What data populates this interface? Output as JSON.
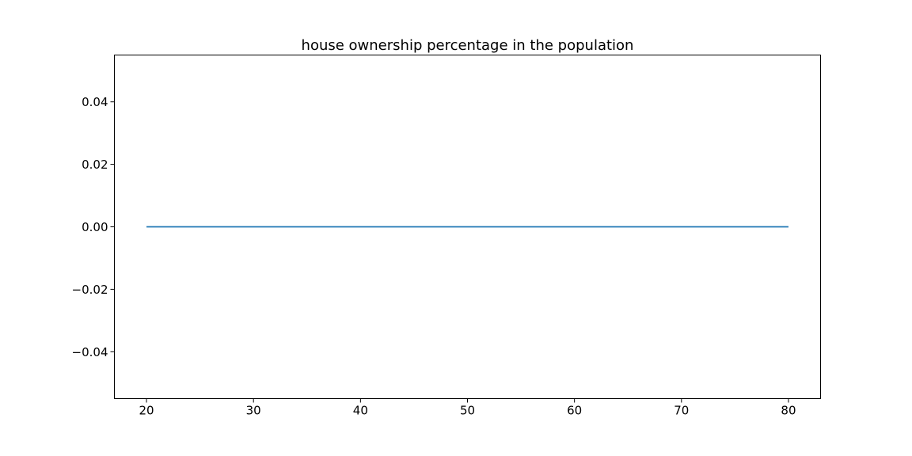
{
  "chart_data": {
    "type": "line",
    "title": "house ownership percentage in the population",
    "xlabel": "",
    "ylabel": "",
    "xlim": [
      17,
      83
    ],
    "ylim": [
      -0.055,
      0.055
    ],
    "x_ticks": [
      20,
      30,
      40,
      50,
      60,
      70,
      80
    ],
    "x_tick_labels": [
      "20",
      "30",
      "40",
      "50",
      "60",
      "70",
      "80"
    ],
    "y_ticks": [
      -0.04,
      -0.02,
      0.0,
      0.02,
      0.04
    ],
    "y_tick_labels": [
      "−0.04",
      "−0.02",
      "0.00",
      "0.02",
      "0.04"
    ],
    "grid": false,
    "series": [
      {
        "color": "#1f77b4",
        "x": [
          20,
          80
        ],
        "y": [
          0,
          0
        ]
      }
    ]
  }
}
